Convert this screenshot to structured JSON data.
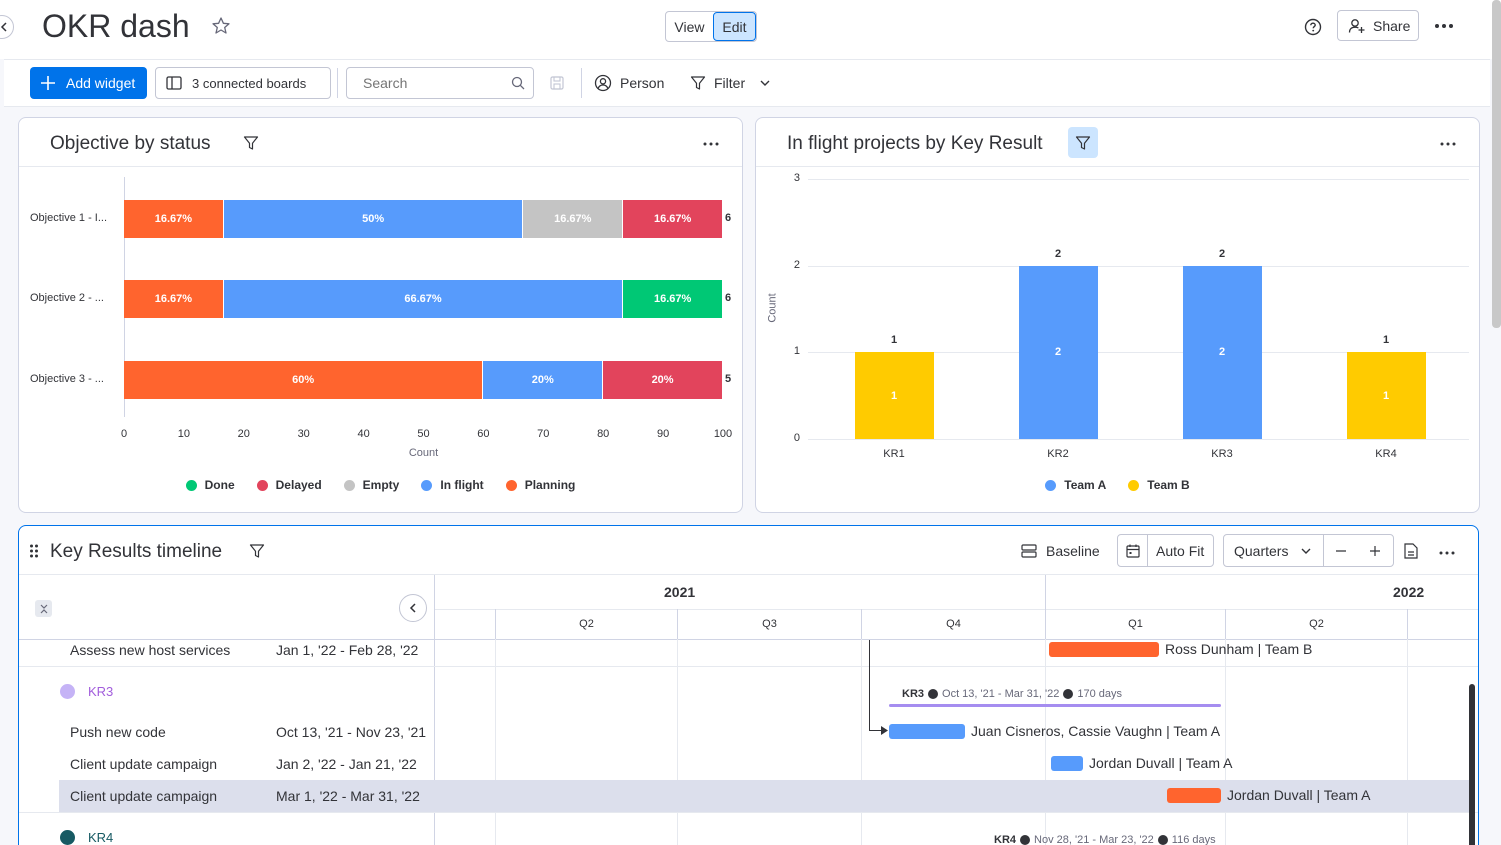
{
  "header": {
    "title": "OKR dash",
    "view_label": "View",
    "edit_label": "Edit",
    "share_label": "Share"
  },
  "toolbar": {
    "add_widget_label": "Add widget",
    "connected_boards_label": "3 connected boards",
    "search_placeholder": "Search",
    "person_label": "Person",
    "filter_label": "Filter"
  },
  "colors": {
    "done": "#00c875",
    "delayed": "#e2445c",
    "empty": "#c4c4c4",
    "in_flight": "#579bfc",
    "planning": "#ff642e",
    "team_a": "#579bfc",
    "team_b": "#ffcb00",
    "accent": "#0073ea"
  },
  "widget_status": {
    "title": "Objective by status",
    "chart_data": {
      "type": "bar",
      "orientation": "horizontal-stacked",
      "categories": [
        "Objective 1 - I...",
        "Objective 2 - ...",
        "Objective 3 - ..."
      ],
      "series": [
        {
          "name": "Planning",
          "values": [
            16.67,
            16.67,
            60
          ]
        },
        {
          "name": "In flight",
          "values": [
            50,
            66.67,
            20
          ]
        },
        {
          "name": "Empty",
          "values": [
            16.67,
            0,
            0
          ]
        },
        {
          "name": "Done",
          "values": [
            0,
            16.67,
            0
          ]
        },
        {
          "name": "Delayed",
          "values": [
            16.67,
            0,
            20
          ]
        }
      ],
      "segments": [
        [
          {
            "series": "Planning",
            "value": 16.67,
            "label": "16.67%"
          },
          {
            "series": "In flight",
            "value": 50,
            "label": "50%"
          },
          {
            "series": "Empty",
            "value": 16.67,
            "label": "16.67%"
          },
          {
            "series": "Delayed",
            "value": 16.67,
            "label": "16.67%"
          }
        ],
        [
          {
            "series": "Planning",
            "value": 16.67,
            "label": "16.67%"
          },
          {
            "series": "In flight",
            "value": 66.67,
            "label": "66.67%"
          },
          {
            "series": "Done",
            "value": 16.67,
            "label": "16.67%"
          }
        ],
        [
          {
            "series": "Planning",
            "value": 60,
            "label": "60%"
          },
          {
            "series": "In flight",
            "value": 20,
            "label": "20%"
          },
          {
            "series": "Delayed",
            "value": 20,
            "label": "20%"
          }
        ]
      ],
      "overflow_labels": [
        "6",
        "6",
        "5"
      ],
      "xticks": [
        "0",
        "10",
        "20",
        "30",
        "40",
        "50",
        "60",
        "70",
        "80",
        "90",
        "100"
      ],
      "xlim": [
        0,
        100
      ],
      "xlabel": "Count",
      "legend": [
        "Done",
        "Delayed",
        "Empty",
        "In flight",
        "Planning"
      ],
      "legend_position": "bottom"
    }
  },
  "widget_flight": {
    "title": "In flight projects by Key Result",
    "chart_data": {
      "type": "bar",
      "orientation": "vertical",
      "categories": [
        "KR1",
        "KR2",
        "KR3",
        "KR4"
      ],
      "series": [
        {
          "name": "Team A",
          "values": [
            0,
            2,
            2,
            0
          ]
        },
        {
          "name": "Team B",
          "values": [
            1,
            0,
            0,
            1
          ]
        }
      ],
      "totals": [
        "1",
        "2",
        "2",
        "1"
      ],
      "inner_labels": [
        "1",
        "2",
        "2",
        "1"
      ],
      "bar_series": [
        "Team B",
        "Team A",
        "Team A",
        "Team B"
      ],
      "yticks": [
        "0",
        "1",
        "2",
        "3"
      ],
      "ylim": [
        0,
        3
      ],
      "ylabel": "Count",
      "legend": [
        "Team A",
        "Team B"
      ],
      "legend_position": "bottom"
    }
  },
  "timeline": {
    "title": "Key Results timeline",
    "baseline_label": "Baseline",
    "autofit_label": "Auto Fit",
    "zoom_select": "Quarters",
    "years": [
      "2021",
      "2022"
    ],
    "quarters": [
      "Q2",
      "Q3",
      "Q4",
      "Q1",
      "Q2"
    ],
    "rows": [
      {
        "name": "Assess new host services",
        "dates": "Jan 1, '22 - Feb 28, '22",
        "bar_label": "Ross Dunham | Team B"
      },
      {
        "group": "KR3",
        "summary_name": "KR3",
        "summary_dates": "Oct 13, '21 - Mar 31, '22",
        "summary_days": "170 days"
      },
      {
        "name": "Push new code",
        "dates": "Oct 13, '21 - Nov 23, '21",
        "bar_label": "Juan Cisneros, Cassie Vaughn | Team A"
      },
      {
        "name": "Client update campaign",
        "dates": "Jan 2, '22 - Jan 21, '22",
        "bar_label": "Jordan Duvall | Team A"
      },
      {
        "name": "Client update campaign",
        "dates": "Mar 1, '22 - Mar 31, '22",
        "bar_label": "Jordan Duvall | Team A"
      },
      {
        "group": "KR4",
        "summary_name": "KR4",
        "summary_dates": "Nov 28, '21 - Mar 23, '22",
        "summary_days": "116 days"
      }
    ]
  }
}
